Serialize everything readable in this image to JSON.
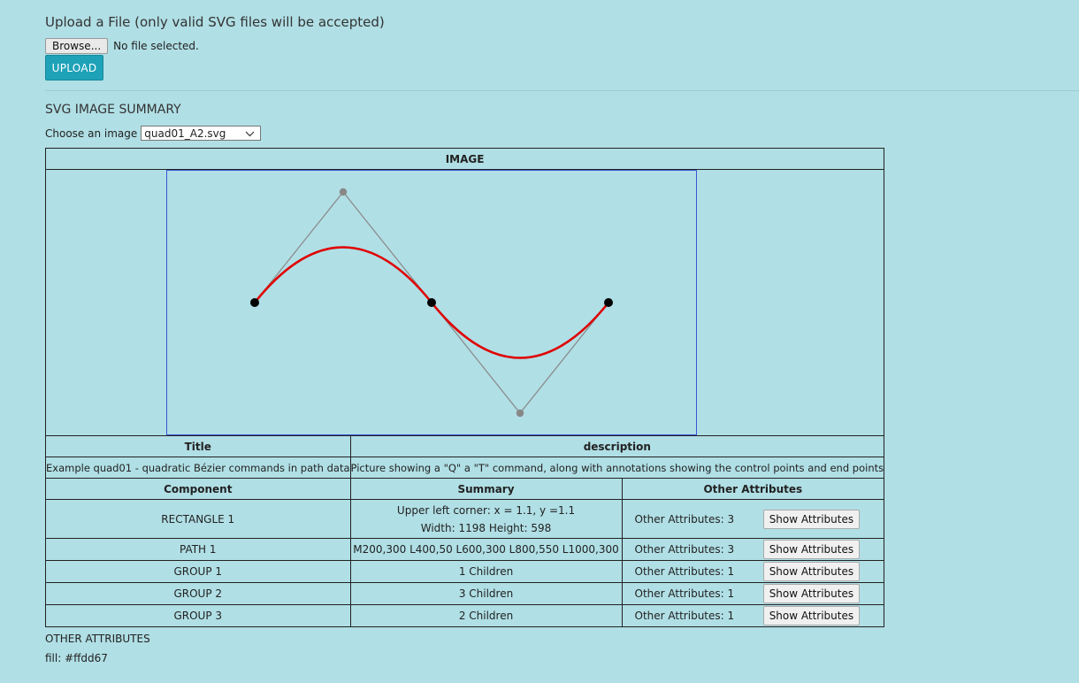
{
  "upload": {
    "title": "Upload a File (only valid SVG files will be accepted)",
    "browse_label": "Browse...",
    "file_status": "No file selected.",
    "upload_label": "UPLOAD"
  },
  "summary": {
    "title": "SVG IMAGE SUMMARY",
    "choose_label": "Choose an image",
    "selected_image": "quad01_A2.svg"
  },
  "table": {
    "image_header": "IMAGE",
    "title_header": "Title",
    "description_header": "description",
    "title_value": "Example quad01 - quadratic Bézier commands in path data",
    "description_value": "Picture showing a \"Q\" a \"T\" command, along with annotations showing the control points and end points",
    "component_header": "Component",
    "summary_header": "Summary",
    "other_header": "Other Attributes",
    "show_label": "Show Attributes",
    "rows": [
      {
        "component": "RECTANGLE 1",
        "summary_line1": "Upper left corner: x = 1.1, y =1.1",
        "summary_line2": "Width: 1198 Height: 598",
        "other": "Other Attributes: 3"
      },
      {
        "component": "PATH 1",
        "summary_line1": "M200,300 L400,50 L600,300 L800,550 L1000,300",
        "other": "Other Attributes: 3"
      },
      {
        "component": "GROUP 1",
        "summary_line1": "1 Children",
        "other": "Other Attributes: 1"
      },
      {
        "component": "GROUP 2",
        "summary_line1": "3 Children",
        "other": "Other Attributes: 1"
      },
      {
        "component": "GROUP 3",
        "summary_line1": "2 Children",
        "other": "Other Attributes: 1"
      }
    ]
  },
  "other_attributes": {
    "title": "OTHER ATTRIBUTES",
    "value": "fill: #ffdd67"
  },
  "colors": {
    "background": "#b0dfe5",
    "accent": "#1ea2b8",
    "curve": "#e00000",
    "frame": "#3a55d9"
  }
}
